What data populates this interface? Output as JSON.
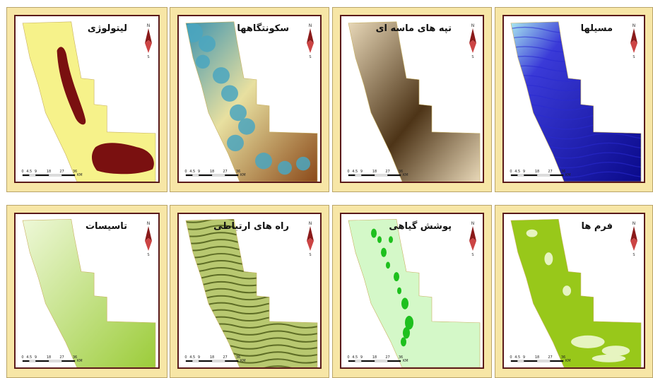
{
  "panels": [
    {
      "id": "lithology",
      "title": "لیتولوژی",
      "type": "lithology"
    },
    {
      "id": "settlements",
      "title": "سکونتگاهها",
      "type": "settlement"
    },
    {
      "id": "dunes",
      "title": "تپه های ماسه ای",
      "type": "dunes"
    },
    {
      "id": "channels",
      "title": "مسیلها",
      "type": "channels"
    },
    {
      "id": "facilities",
      "title": "تاسیسات",
      "type": "facilities"
    },
    {
      "id": "roads",
      "title": "راه های ارتباطی",
      "type": "roads"
    },
    {
      "id": "vegetation",
      "title": "پوشش گیاهی",
      "type": "vegetation"
    },
    {
      "id": "landforms",
      "title": "فرم ها",
      "type": "landforms"
    }
  ],
  "scalebar": {
    "ticks": [
      "0",
      "4.5",
      "9",
      "18",
      "27",
      "36"
    ],
    "unit": "KM"
  },
  "north_label": "N",
  "south_label": "S",
  "colors": {
    "frame": "#f7e6a6",
    "border": "#5a1a1a",
    "lithology_base": "#f6f28a",
    "lithology_unit": "#7a1010",
    "settlement_low": "#3a92b0",
    "settlement_high": "#8b4a1a",
    "dunes_dark": "#4d3417",
    "dunes_light": "#e8d8b8",
    "channels_dark": "#0a0a8a",
    "channels_light": "#a8e8f0",
    "facilities_base": "#c8e890",
    "roads_dark": "#4c5c18",
    "vegetation_base": "#d4f8c8",
    "vegetation_patch": "#1ec01e",
    "landforms_base": "#98c81a",
    "landforms_light": "#e6f4c0"
  }
}
